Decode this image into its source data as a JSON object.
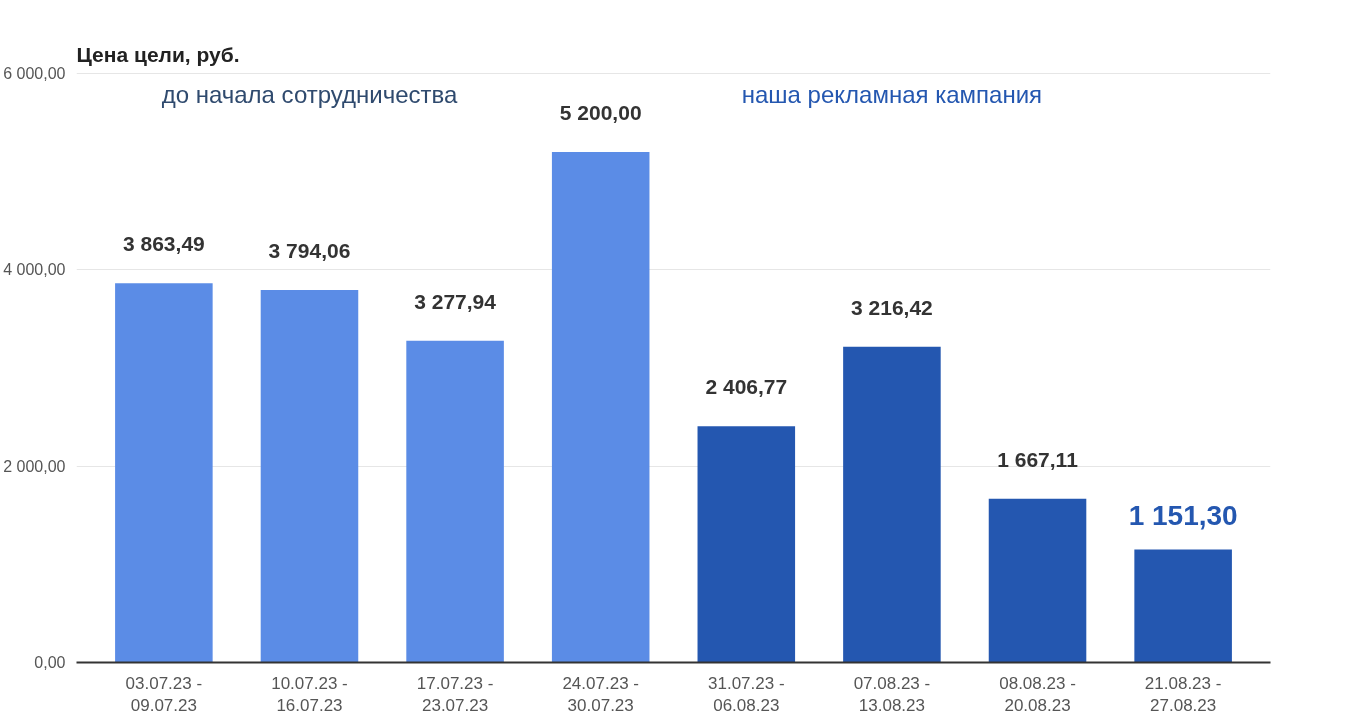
{
  "chart_data": {
    "type": "bar",
    "title": "Цена цели, руб.",
    "categories": [
      "03.07.23 -\n09.07.23",
      "10.07.23 -\n16.07.23",
      "17.07.23 -\n23.07.23",
      "24.07.23 -\n30.07.23",
      "31.07.23 -\n06.08.23",
      "07.08.23 -\n13.08.23",
      "08.08.23 -\n20.08.23",
      "21.08.23 -\n27.08.23"
    ],
    "values": [
      3863.49,
      3794.06,
      3277.94,
      5200.0,
      2406.77,
      3216.42,
      1667.11,
      1151.3
    ],
    "colors": [
      "#5b8ce6",
      "#5b8ce6",
      "#5b8ce6",
      "#5b8ce6",
      "#2457b0",
      "#2457b0",
      "#2457b0",
      "#2457b0"
    ],
    "value_labels": [
      "3 863,49",
      "3 794,06",
      "3 277,94",
      "5 200,00",
      "2 406,77",
      "3 216,42",
      "1 667,11",
      "1 151,30"
    ],
    "annotations": [
      "до начала сотрудничества",
      "наша рекламная кампания"
    ],
    "ylim": [
      0,
      6000
    ],
    "yticks": [
      {
        "value": 0,
        "label": "0,00"
      },
      {
        "value": 2000,
        "label": "2 000,00"
      },
      {
        "value": 4000,
        "label": "4 000,00"
      },
      {
        "value": 6000,
        "label": "6 000,00"
      }
    ],
    "grid": "y"
  }
}
